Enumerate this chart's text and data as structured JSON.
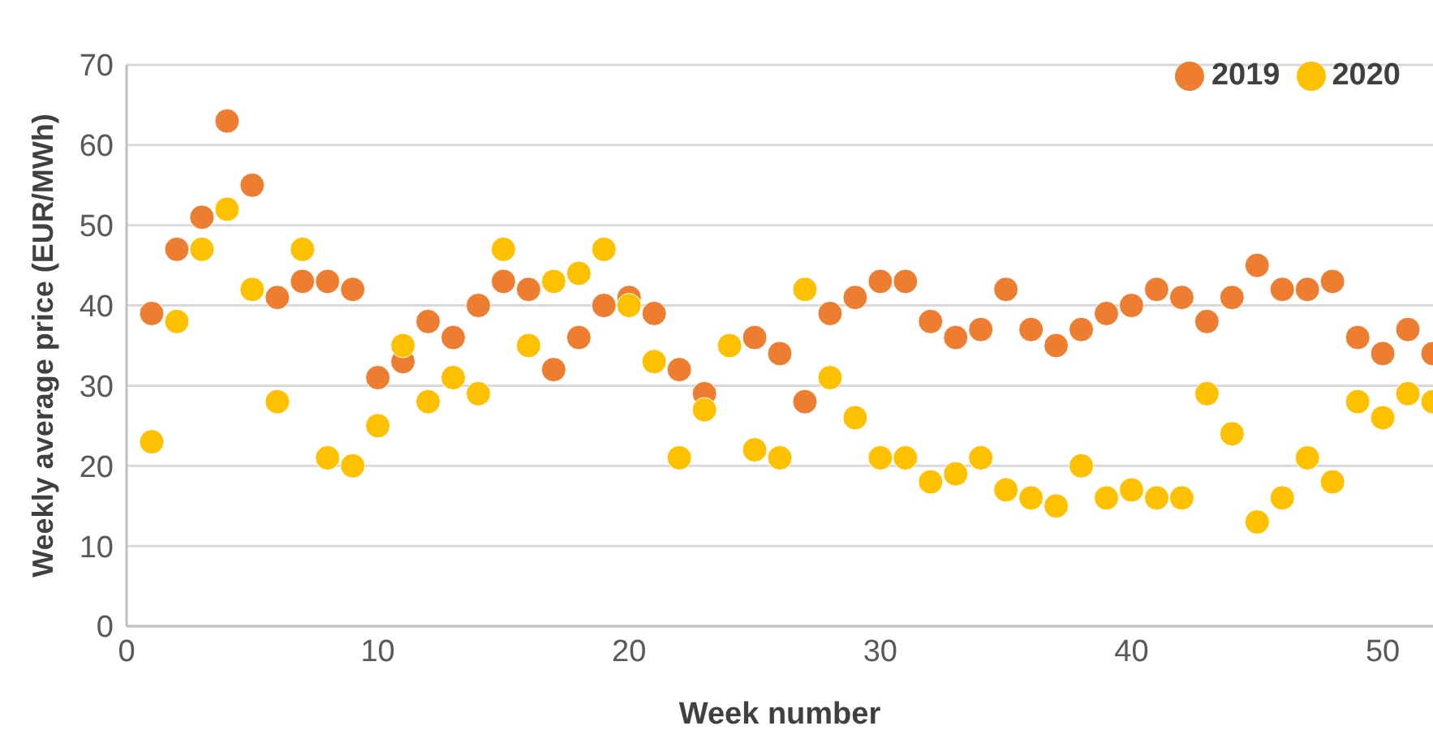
{
  "chart_data": {
    "type": "scatter",
    "xlabel": "Week number",
    "ylabel": "Weekly average price (EUR/MWh)",
    "x": [
      1,
      2,
      3,
      4,
      5,
      6,
      7,
      8,
      9,
      10,
      11,
      12,
      13,
      14,
      15,
      16,
      17,
      18,
      19,
      20,
      21,
      22,
      23,
      24,
      25,
      26,
      27,
      28,
      29,
      30,
      31,
      32,
      33,
      34,
      35,
      36,
      37,
      38,
      39,
      40,
      41,
      42,
      43,
      44,
      45,
      46,
      47,
      48,
      49,
      50,
      51,
      52
    ],
    "series": [
      {
        "name": "2019",
        "color": "#ed7d31",
        "values": [
          39,
          47,
          51,
          63,
          55,
          41,
          43,
          43,
          42,
          31,
          33,
          38,
          36,
          40,
          43,
          42,
          32,
          36,
          40,
          41,
          39,
          32,
          29,
          null,
          36,
          34,
          28,
          39,
          41,
          43,
          43,
          38,
          36,
          37,
          42,
          37,
          35,
          37,
          39,
          40,
          42,
          41,
          38,
          41,
          45,
          42,
          42,
          43,
          36,
          34,
          37,
          34
        ]
      },
      {
        "name": "2020",
        "color": "#ffc000",
        "values": [
          23,
          38,
          47,
          52,
          42,
          28,
          47,
          21,
          20,
          25,
          35,
          28,
          31,
          29,
          47,
          35,
          43,
          44,
          47,
          40,
          33,
          21,
          27,
          35,
          22,
          21,
          42,
          31,
          26,
          21,
          21,
          18,
          19,
          21,
          17,
          16,
          15,
          20,
          16,
          17,
          16,
          16,
          29,
          24,
          13,
          16,
          21,
          18,
          28,
          26,
          29,
          28
        ]
      }
    ],
    "xlim": [
      0,
      52
    ],
    "xticks": [
      0,
      10,
      20,
      30,
      40,
      50
    ],
    "ylim": [
      0,
      70
    ],
    "yticks": [
      0,
      10,
      20,
      30,
      40,
      50,
      60,
      70
    ],
    "grid": "y",
    "legend": "top right",
    "marker": "circle"
  }
}
